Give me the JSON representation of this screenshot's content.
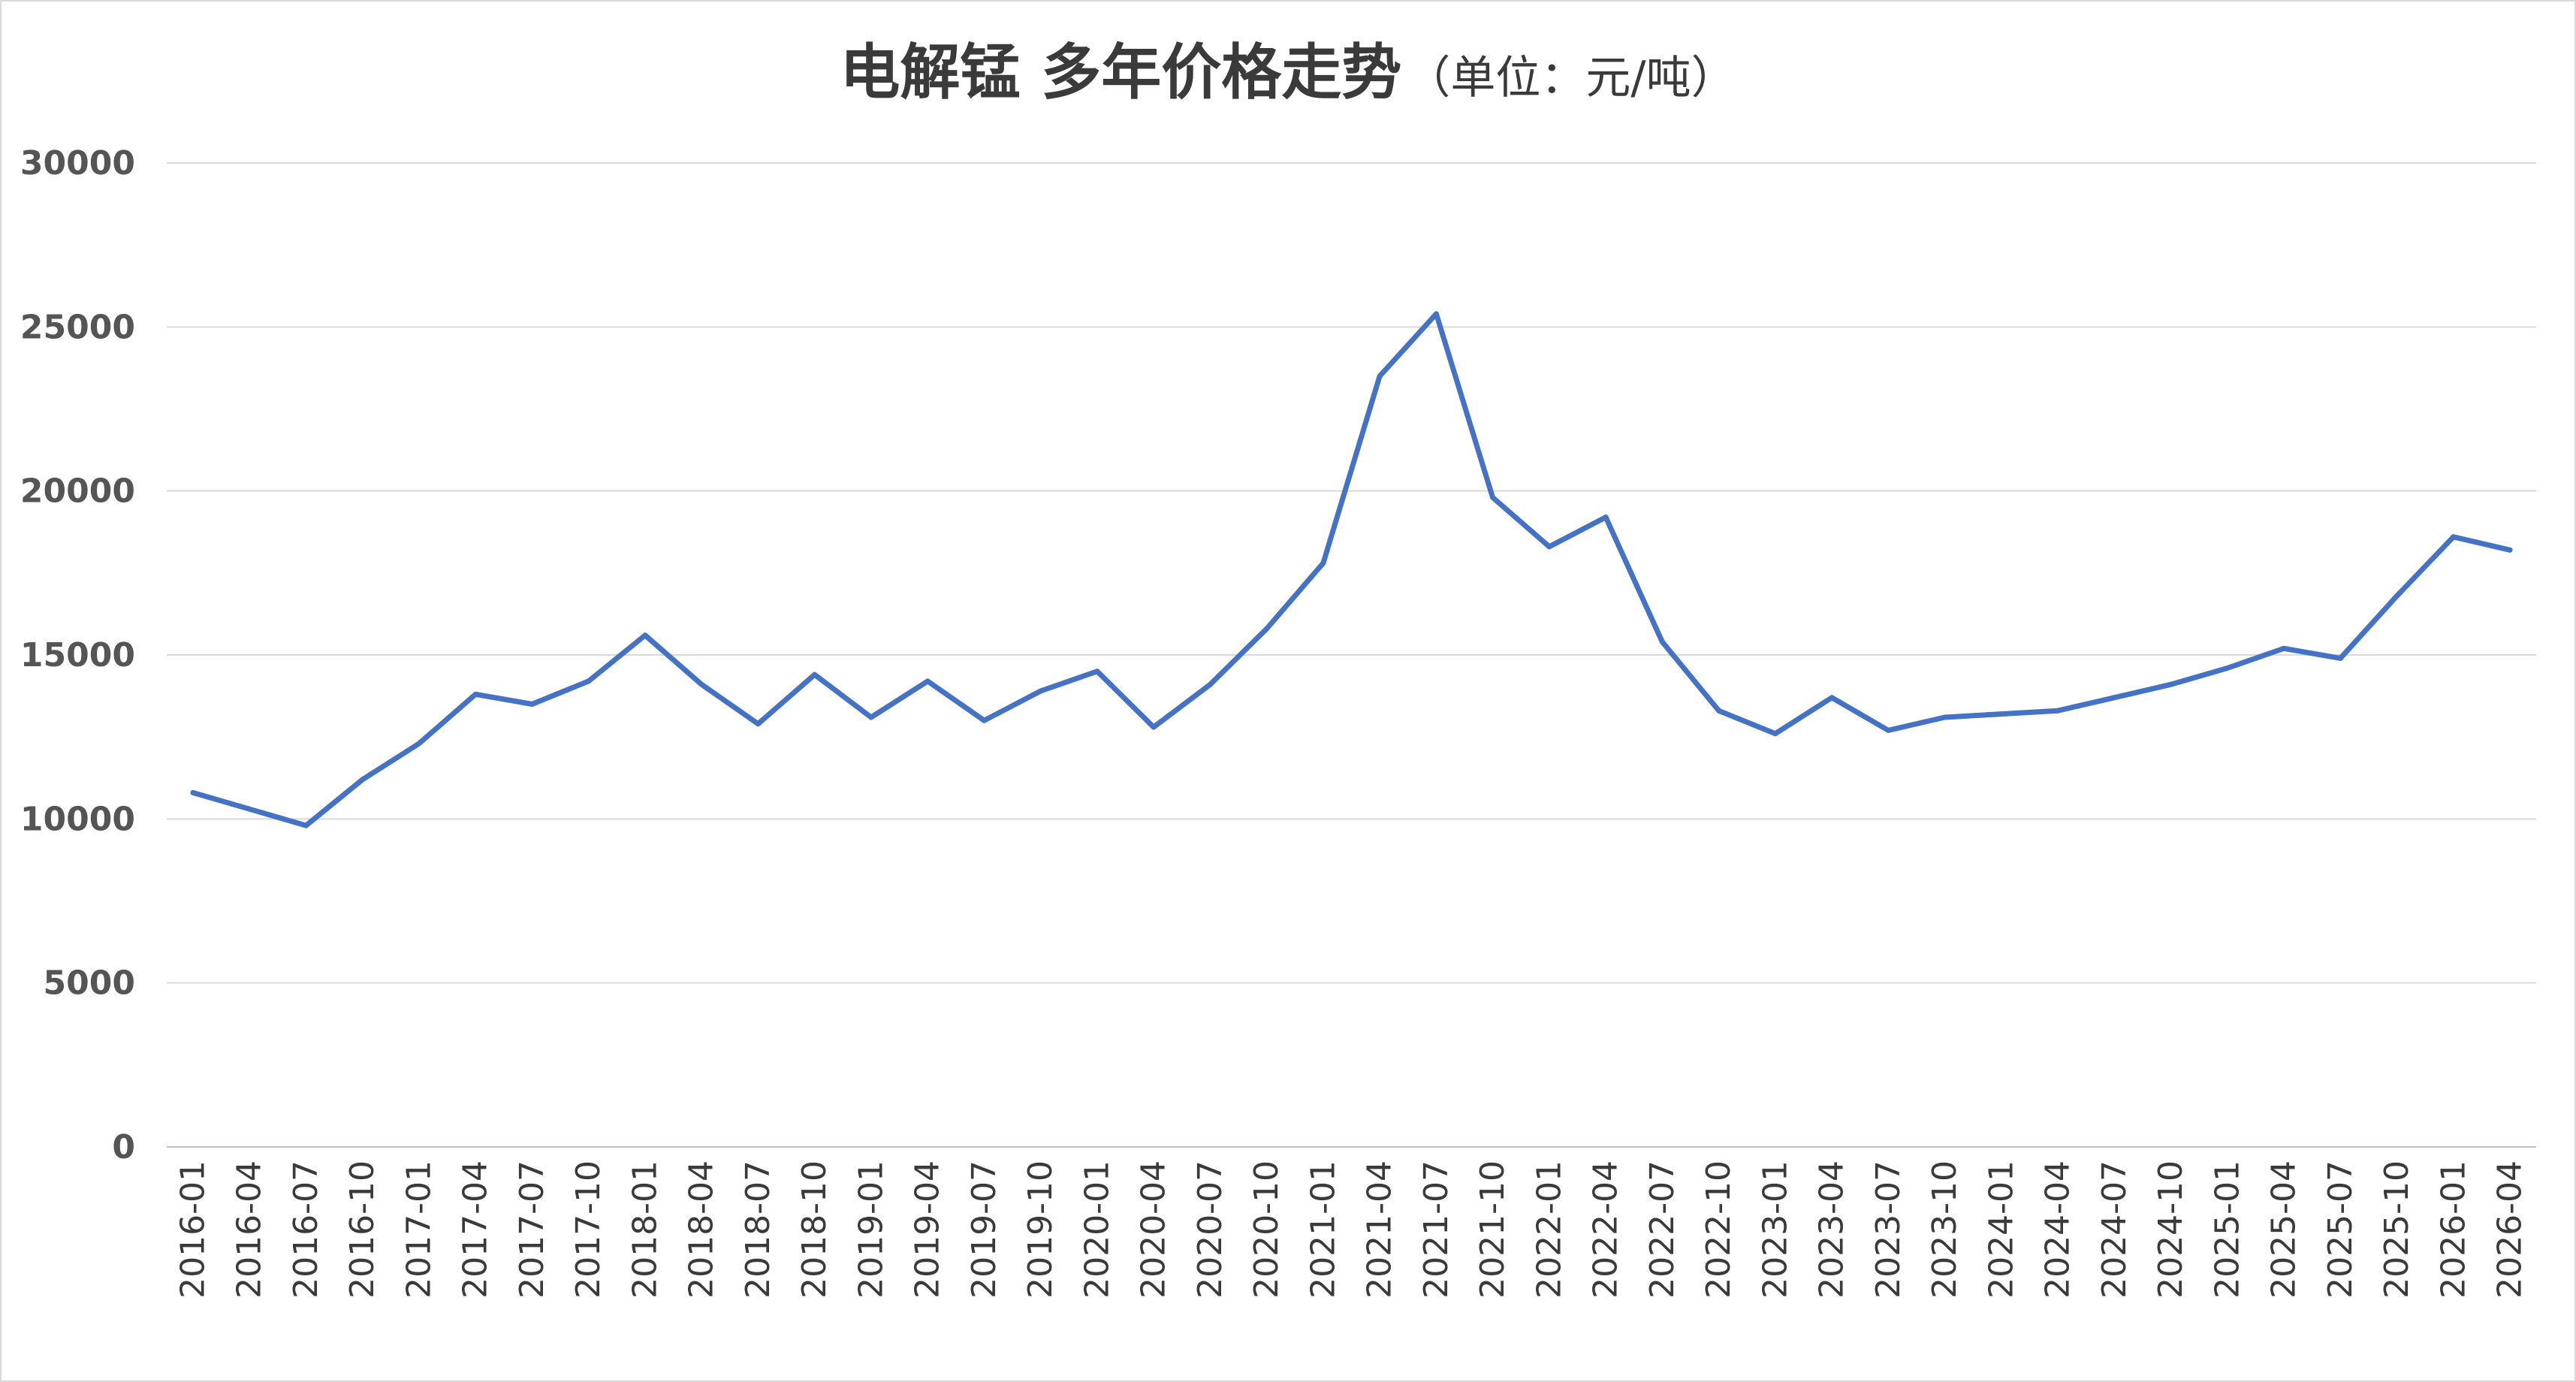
{
  "chart_data": {
    "type": "line",
    "title": "电解锰 多年价格走势",
    "subtitle": "（单位：元/吨）",
    "xlabel": "",
    "ylabel": "",
    "ylim": [
      0,
      30000
    ],
    "yticks": [
      0,
      5000,
      10000,
      15000,
      20000,
      25000,
      30000
    ],
    "grid": true,
    "colors": {
      "line": "#4472c4",
      "grid": "#d9d9d9",
      "axis": "#bfbfbf"
    },
    "categories": [
      "2016-01",
      "2016-04",
      "2016-07",
      "2016-10",
      "2017-01",
      "2017-04",
      "2017-07",
      "2017-10",
      "2018-01",
      "2018-04",
      "2018-07",
      "2018-10",
      "2019-01",
      "2019-04",
      "2019-07",
      "2019-10",
      "2020-01",
      "2020-04",
      "2020-07",
      "2020-10",
      "2021-01",
      "2021-04",
      "2021-07",
      "2021-10",
      "2022-01",
      "2022-04",
      "2022-07",
      "2022-10",
      "2023-01",
      "2023-04",
      "2023-07",
      "2023-10",
      "2024-01",
      "2024-04",
      "2024-07",
      "2024-10",
      "2025-01",
      "2025-04",
      "2025-07",
      "2025-10",
      "2026-01",
      "2026-04"
    ],
    "series": [
      {
        "values": [
          10800,
          10300,
          9800,
          11200,
          12300,
          13800,
          13500,
          14200,
          15600,
          14100,
          12900,
          14400,
          13100,
          14200,
          13000,
          13900,
          14500,
          12800,
          14100,
          15800,
          17800,
          23500,
          25400,
          19800,
          18300,
          19200,
          15400,
          13300,
          12600,
          13700,
          12700,
          13100,
          13200,
          13300,
          13700,
          14100,
          14600,
          15200,
          14900,
          16800,
          18600,
          18200
        ]
      }
    ]
  }
}
